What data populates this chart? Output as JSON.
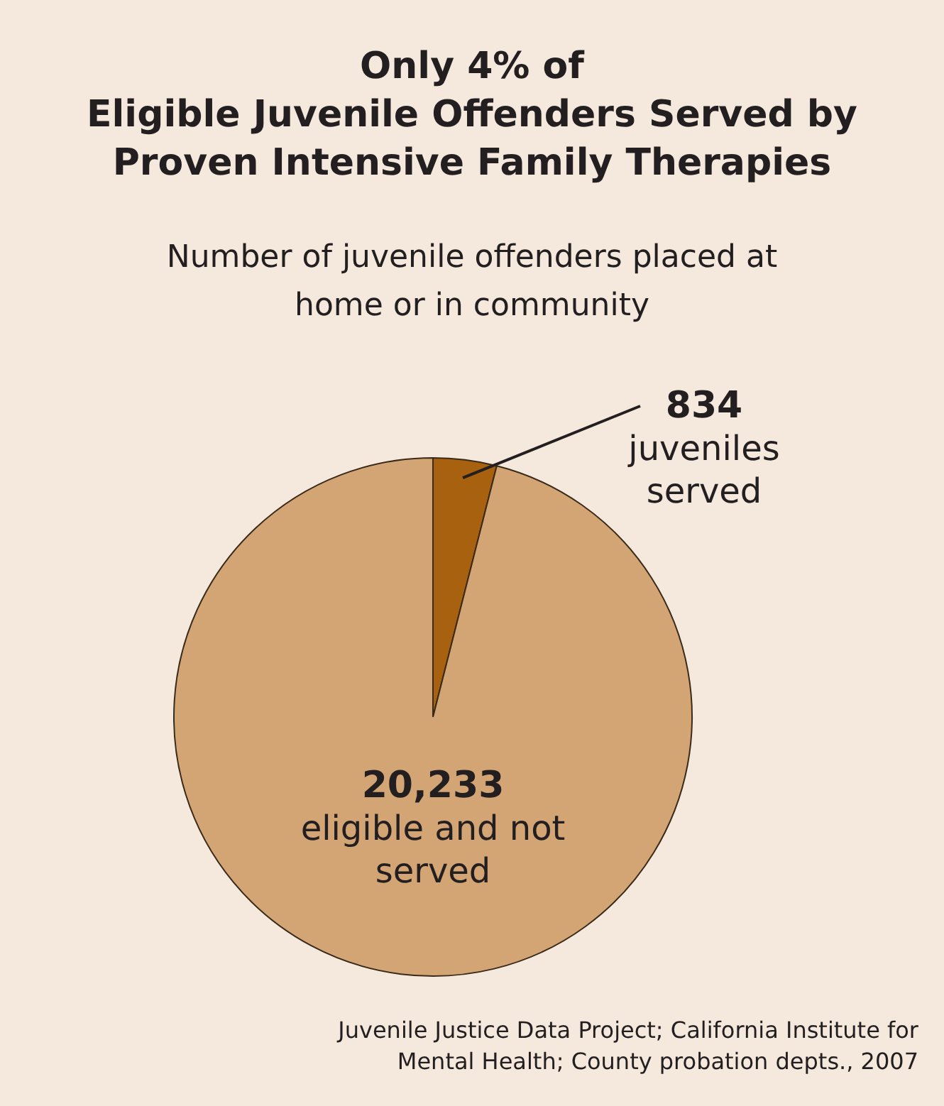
{
  "chart_data": {
    "type": "pie",
    "title": "Only 4% of\nEligible Juvenile Offenders Served by\nProven Intensive Family Therapies",
    "subtitle": "Number of juvenile offenders placed at\nhome or in community",
    "categories": [
      "juveniles served",
      "eligible and not served"
    ],
    "values": [
      834,
      20233
    ],
    "value_labels": [
      "834",
      "20,233"
    ],
    "colors": [
      "#a8620f",
      "#d4a574"
    ],
    "legend": false,
    "annotations": [
      "Juvenile Justice Data Project; California Institute for\nMental Health; County probation depts., 2007"
    ]
  }
}
